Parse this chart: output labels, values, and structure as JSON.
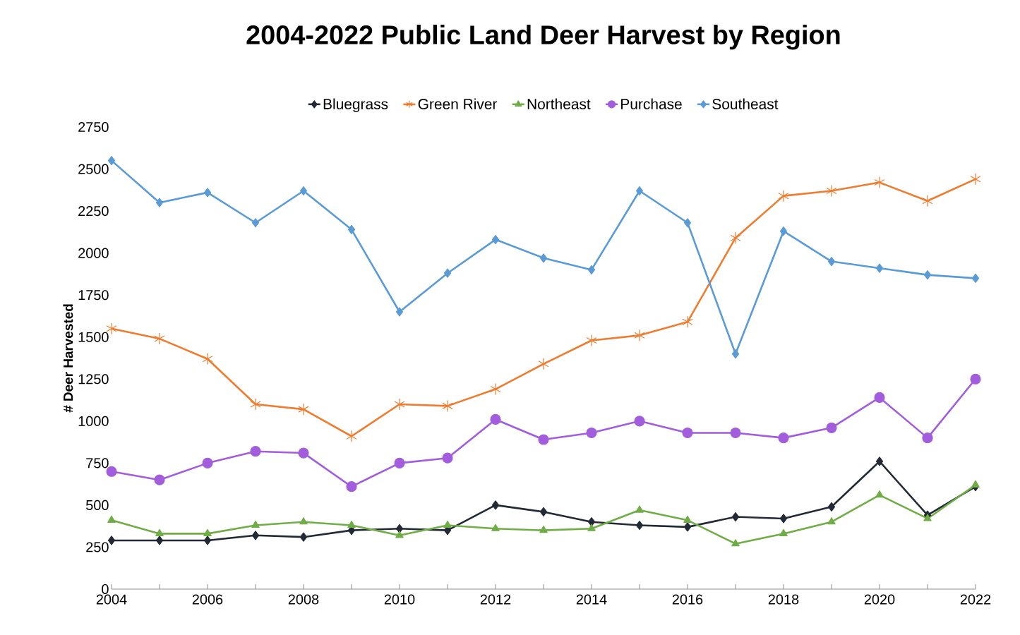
{
  "chart_data": {
    "type": "line",
    "title": "2004-2022 Public Land Deer Harvest by Region",
    "ylabel": "# Deer Harvested",
    "x": [
      2004,
      2005,
      2006,
      2007,
      2008,
      2009,
      2010,
      2011,
      2012,
      2013,
      2014,
      2015,
      2016,
      2017,
      2018,
      2019,
      2020,
      2021,
      2022
    ],
    "xlim": [
      2004,
      2022
    ],
    "xticks": [
      2004,
      {
        "value": 2005,
        "label": null
      },
      2006,
      {
        "value": 2007,
        "label": null
      },
      2008,
      {
        "value": 2009,
        "label": null
      },
      2010,
      {
        "value": 2011,
        "label": null
      },
      2012,
      {
        "value": 2013,
        "label": null
      },
      2014,
      {
        "value": 2015,
        "label": null
      },
      2016,
      {
        "value": 2017,
        "label": null
      },
      2018,
      {
        "value": 2019,
        "label": null
      },
      2020,
      {
        "value": 2021,
        "label": null
      },
      2022
    ],
    "ylim": [
      0,
      2750
    ],
    "yticks": [
      0,
      250,
      500,
      750,
      1000,
      1250,
      1500,
      1750,
      2000,
      2250,
      2500,
      2750
    ],
    "grid": false,
    "legend": "top",
    "series": [
      {
        "name": "Bluegrass",
        "color": "#222a35",
        "marker": "diamond",
        "values": [
          290,
          290,
          290,
          320,
          310,
          350,
          360,
          350,
          500,
          460,
          400,
          380,
          370,
          430,
          420,
          490,
          760,
          440,
          610
        ]
      },
      {
        "name": "Green River",
        "color": "#ed7d31",
        "marker": "cross",
        "values": [
          1550,
          1490,
          1370,
          1100,
          1070,
          910,
          1100,
          1090,
          1190,
          1340,
          1480,
          1510,
          1590,
          2090,
          2340,
          2370,
          2420,
          2310,
          2440
        ]
      },
      {
        "name": "Northeast",
        "color": "#70ad47",
        "marker": "triangle",
        "values": [
          410,
          330,
          330,
          380,
          400,
          380,
          320,
          380,
          360,
          350,
          360,
          470,
          410,
          270,
          330,
          400,
          560,
          420,
          620
        ]
      },
      {
        "name": "Purchase",
        "color": "#a25ddc",
        "marker": "circle",
        "values": [
          700,
          650,
          750,
          820,
          810,
          610,
          750,
          780,
          1010,
          890,
          930,
          1000,
          930,
          930,
          900,
          960,
          1140,
          900,
          1250
        ]
      },
      {
        "name": "Southeast",
        "color": "#5b9bd5",
        "marker": "diamond",
        "values": [
          2550,
          2300,
          2360,
          2180,
          2370,
          2140,
          1650,
          1880,
          2080,
          1970,
          1900,
          2370,
          2180,
          1400,
          2130,
          1950,
          1910,
          1870,
          1850
        ]
      }
    ]
  }
}
